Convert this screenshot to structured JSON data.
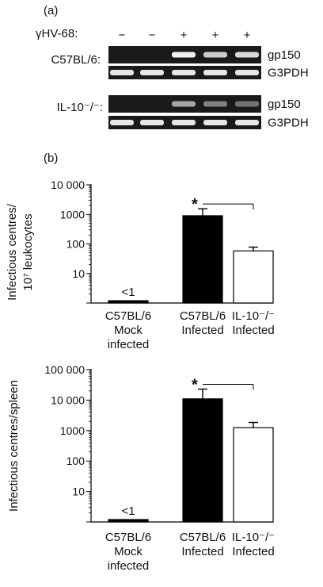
{
  "panel_a": {
    "label": "(a)",
    "treatment_label": "γHV-68:",
    "lanes": [
      "−",
      "−",
      "+",
      "+",
      "+"
    ],
    "groups": [
      {
        "name": "C57BL/6:",
        "rows": [
          {
            "label": "gp150",
            "intensities": [
              0,
              0,
              0.95,
              0.8,
              0.85
            ]
          },
          {
            "label": "G3PDH",
            "intensities": [
              0.9,
              0.9,
              0.9,
              0.9,
              0.9
            ]
          }
        ]
      },
      {
        "name": "IL-10⁻/⁻:",
        "rows": [
          {
            "label": "gp150",
            "intensities": [
              0,
              0,
              0.65,
              0.5,
              0.45
            ]
          },
          {
            "label": "G3PDH",
            "intensities": [
              0.9,
              0.9,
              0.9,
              0.9,
              0.9
            ]
          }
        ]
      }
    ]
  },
  "panel_b_label": "(b)",
  "chart_data": [
    {
      "type": "bar",
      "ylabel": [
        "Infectious centres/",
        "10⁷ leukocytes"
      ],
      "ylog": true,
      "ylim": [
        1,
        10000
      ],
      "yticks": [
        "10 000",
        "1000",
        "100",
        "10"
      ],
      "categories": [
        [
          "C57BL/6",
          "Mock",
          "infected"
        ],
        [
          "C57BL/6",
          "Infected"
        ],
        [
          "IL-10⁻/⁻",
          "Infected"
        ]
      ],
      "values": [
        1.2,
        900,
        58
      ],
      "errors": [
        0,
        650,
        20
      ],
      "fills": [
        "#000000",
        "#000000",
        "#ffffff"
      ],
      "bar_labels": [
        "<1",
        "",
        ""
      ],
      "significance": {
        "from": 1,
        "to": 2,
        "marker": "*"
      }
    },
    {
      "type": "bar",
      "ylabel": [
        "Infectious centres/spleen"
      ],
      "ylog": true,
      "ylim": [
        1,
        100000
      ],
      "yticks": [
        "100 000",
        "10 000",
        "1000",
        "100",
        "10"
      ],
      "categories": [
        [
          "C57BL/6",
          "Mock",
          "infected"
        ],
        [
          "C57BL/6",
          "Infected"
        ],
        [
          "IL-10⁻/⁻",
          "Infected"
        ]
      ],
      "values": [
        1.2,
        11000,
        1250
      ],
      "errors": [
        0,
        12000,
        600
      ],
      "fills": [
        "#000000",
        "#000000",
        "#ffffff"
      ],
      "bar_labels": [
        "<1",
        "",
        ""
      ],
      "significance": {
        "from": 1,
        "to": 2,
        "marker": "*"
      }
    }
  ]
}
